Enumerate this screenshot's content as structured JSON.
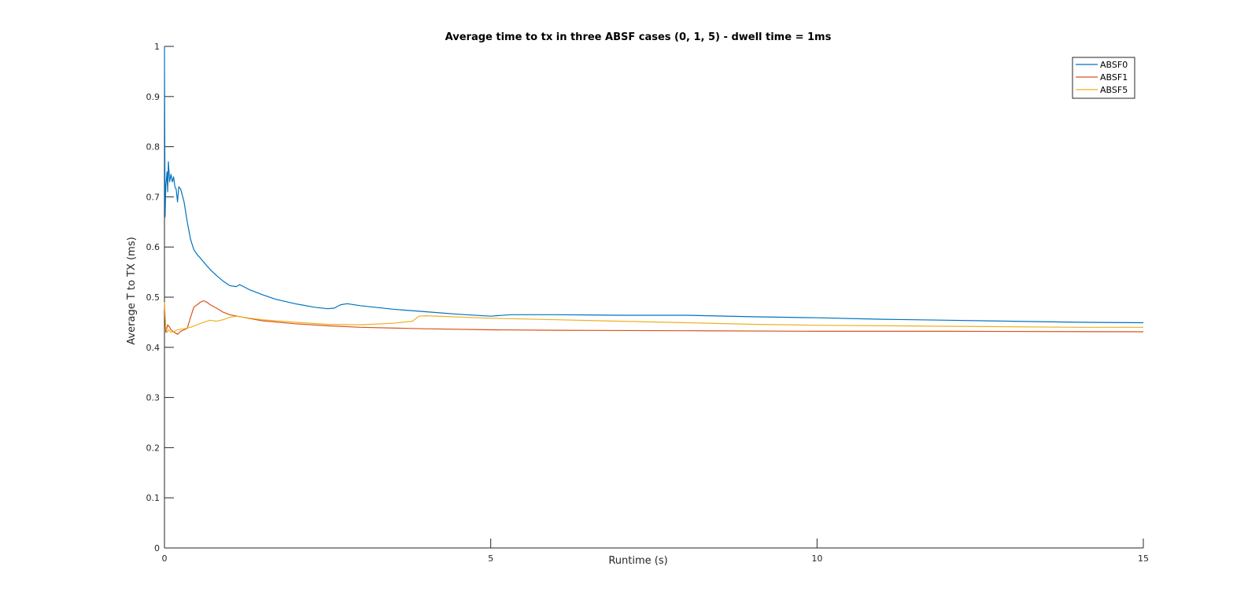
{
  "chart_data": {
    "type": "line",
    "title": "Average time to tx in three ABSF cases (0, 1, 5) - dwell time = 1ms",
    "xlabel": "Runtime (s)",
    "ylabel": "Average T to TX (ms)",
    "xlim": [
      0,
      15
    ],
    "ylim": [
      0,
      1
    ],
    "xticks": [
      0,
      5,
      10,
      15
    ],
    "yticks": [
      0,
      0.1,
      0.2,
      0.3,
      0.4,
      0.5,
      0.6,
      0.7,
      0.8,
      0.9,
      1
    ],
    "grid": false,
    "legend_position": "top-right",
    "series": [
      {
        "name": "ABSF0",
        "color": "#0072BD",
        "points": [
          [
            0,
            1.0
          ],
          [
            0.01,
            0.66
          ],
          [
            0.02,
            0.72
          ],
          [
            0.04,
            0.75
          ],
          [
            0.05,
            0.71
          ],
          [
            0.06,
            0.77
          ],
          [
            0.08,
            0.73
          ],
          [
            0.1,
            0.745
          ],
          [
            0.12,
            0.73
          ],
          [
            0.14,
            0.74
          ],
          [
            0.16,
            0.72
          ],
          [
            0.18,
            0.715
          ],
          [
            0.2,
            0.69
          ],
          [
            0.22,
            0.72
          ],
          [
            0.25,
            0.715
          ],
          [
            0.3,
            0.69
          ],
          [
            0.35,
            0.65
          ],
          [
            0.4,
            0.615
          ],
          [
            0.45,
            0.595
          ],
          [
            0.5,
            0.585
          ],
          [
            0.55,
            0.578
          ],
          [
            0.6,
            0.57
          ],
          [
            0.7,
            0.555
          ],
          [
            0.8,
            0.543
          ],
          [
            0.9,
            0.532
          ],
          [
            1.0,
            0.523
          ],
          [
            1.1,
            0.521
          ],
          [
            1.15,
            0.525
          ],
          [
            1.2,
            0.522
          ],
          [
            1.3,
            0.515
          ],
          [
            1.5,
            0.505
          ],
          [
            1.7,
            0.496
          ],
          [
            2.0,
            0.487
          ],
          [
            2.3,
            0.48
          ],
          [
            2.5,
            0.477
          ],
          [
            2.6,
            0.478
          ],
          [
            2.7,
            0.485
          ],
          [
            2.8,
            0.487
          ],
          [
            3.0,
            0.483
          ],
          [
            3.5,
            0.476
          ],
          [
            4.0,
            0.471
          ],
          [
            4.5,
            0.466
          ],
          [
            5.0,
            0.462
          ],
          [
            5.3,
            0.465
          ],
          [
            6.0,
            0.465
          ],
          [
            7.0,
            0.464
          ],
          [
            8.0,
            0.464
          ],
          [
            9.0,
            0.461
          ],
          [
            10.0,
            0.459
          ],
          [
            11.0,
            0.456
          ],
          [
            12.0,
            0.454
          ],
          [
            13.0,
            0.452
          ],
          [
            14.0,
            0.45
          ],
          [
            15.0,
            0.449
          ]
        ]
      },
      {
        "name": "ABSF1",
        "color": "#D95319",
        "points": [
          [
            0,
            0.49
          ],
          [
            0.02,
            0.43
          ],
          [
            0.05,
            0.445
          ],
          [
            0.08,
            0.44
          ],
          [
            0.1,
            0.435
          ],
          [
            0.15,
            0.43
          ],
          [
            0.2,
            0.426
          ],
          [
            0.25,
            0.432
          ],
          [
            0.3,
            0.435
          ],
          [
            0.35,
            0.438
          ],
          [
            0.4,
            0.46
          ],
          [
            0.45,
            0.48
          ],
          [
            0.5,
            0.485
          ],
          [
            0.55,
            0.49
          ],
          [
            0.6,
            0.493
          ],
          [
            0.65,
            0.49
          ],
          [
            0.7,
            0.485
          ],
          [
            0.8,
            0.478
          ],
          [
            0.9,
            0.47
          ],
          [
            1.0,
            0.465
          ],
          [
            1.2,
            0.46
          ],
          [
            1.5,
            0.453
          ],
          [
            2.0,
            0.447
          ],
          [
            2.5,
            0.443
          ],
          [
            3.0,
            0.44
          ],
          [
            4.0,
            0.437
          ],
          [
            5.0,
            0.435
          ],
          [
            6.0,
            0.434
          ],
          [
            8.0,
            0.433
          ],
          [
            10.0,
            0.432
          ],
          [
            12.0,
            0.432
          ],
          [
            15.0,
            0.431
          ]
        ]
      },
      {
        "name": "ABSF5",
        "color": "#EDB120",
        "points": [
          [
            0,
            0.49
          ],
          [
            0.02,
            0.44
          ],
          [
            0.04,
            0.43
          ],
          [
            0.06,
            0.435
          ],
          [
            0.1,
            0.43
          ],
          [
            0.15,
            0.432
          ],
          [
            0.2,
            0.435
          ],
          [
            0.3,
            0.437
          ],
          [
            0.4,
            0.44
          ],
          [
            0.5,
            0.445
          ],
          [
            0.6,
            0.45
          ],
          [
            0.7,
            0.454
          ],
          [
            0.8,
            0.452
          ],
          [
            0.9,
            0.455
          ],
          [
            1.0,
            0.46
          ],
          [
            1.1,
            0.462
          ],
          [
            1.2,
            0.46
          ],
          [
            1.5,
            0.455
          ],
          [
            2.0,
            0.45
          ],
          [
            2.5,
            0.446
          ],
          [
            3.0,
            0.445
          ],
          [
            3.5,
            0.448
          ],
          [
            3.8,
            0.452
          ],
          [
            3.9,
            0.462
          ],
          [
            4.0,
            0.463
          ],
          [
            5.0,
            0.458
          ],
          [
            6.0,
            0.455
          ],
          [
            7.0,
            0.452
          ],
          [
            8.0,
            0.449
          ],
          [
            9.0,
            0.446
          ],
          [
            10.0,
            0.444
          ],
          [
            12.0,
            0.442
          ],
          [
            14.0,
            0.44
          ],
          [
            15.0,
            0.44
          ]
        ]
      }
    ]
  }
}
